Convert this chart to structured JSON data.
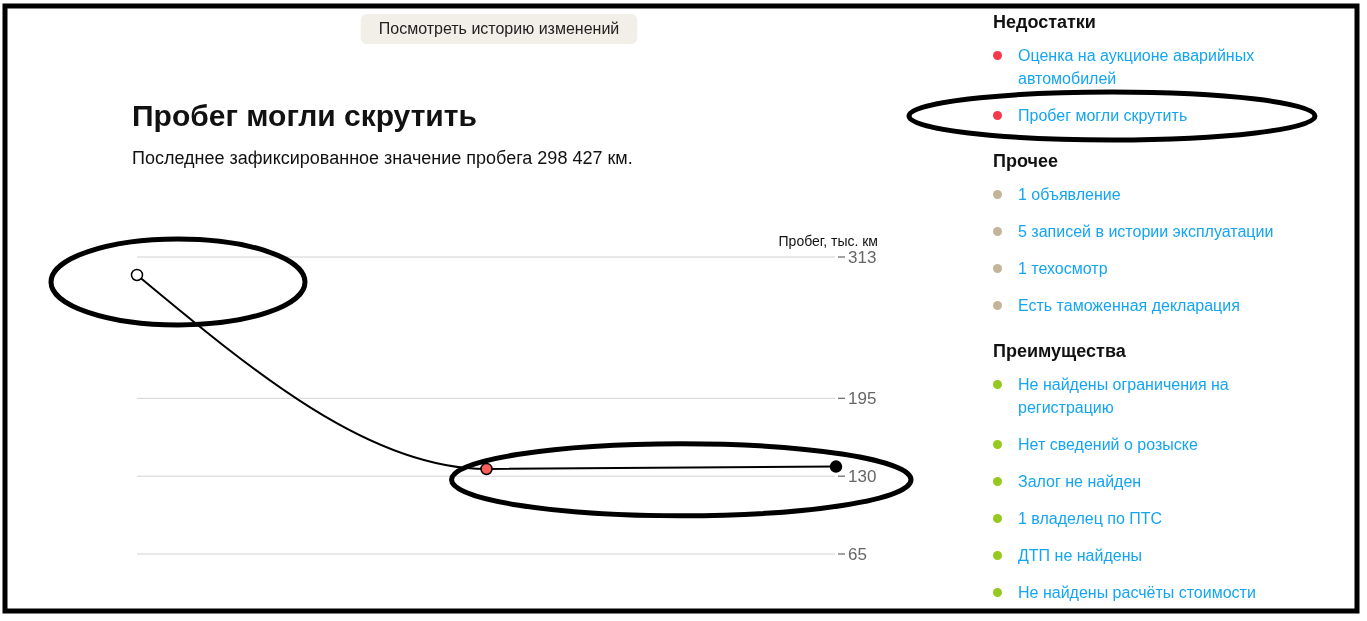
{
  "chart_data": [
    {
      "type": "line",
      "title": "Пробег могли скрутить",
      "subtitle": "Последнее зафиксированное значение пробега 298 427 км.",
      "ylabel": "Пробег, тыс. км",
      "annotations": [
        "Посмотреть историю изменений"
      ],
      "categories": [
        null,
        null,
        null
      ],
      "values": [
        298,
        136,
        138
      ],
      "color": "#000000",
      "colors": [
        "#ffffff",
        "#ff5c5c",
        "#000000"
      ],
      "ylim": [
        65,
        313
      ],
      "yticks": [
        65,
        130,
        195,
        313
      ],
      "grid": "y",
      "marker": "circle",
      "tick_labels": "y"
    },
    {
      "type": "other",
      "title": "Недостатки",
      "categories": [
        "Оценка на аукционе аварийных автомобилей",
        "Пробег могли скрутить"
      ],
      "color": "#f5394a"
    },
    {
      "type": "other",
      "title": "Прочее",
      "categories": [
        "1 объявление",
        "5 записей в истории эксплуатации",
        "1 техосмотр",
        "Есть таможенная декларация"
      ],
      "color": "#c4b59a"
    },
    {
      "type": "other",
      "title": "Преимущества",
      "categories": [
        "Не найдены ограничения на регистрацию",
        "Нет сведений о розыске",
        "Залог не найден",
        "1 владелец по ПТС",
        "ДТП не найдены",
        "Не найдены расчёты стоимости"
      ],
      "color": "#95c91f"
    }
  ]
}
